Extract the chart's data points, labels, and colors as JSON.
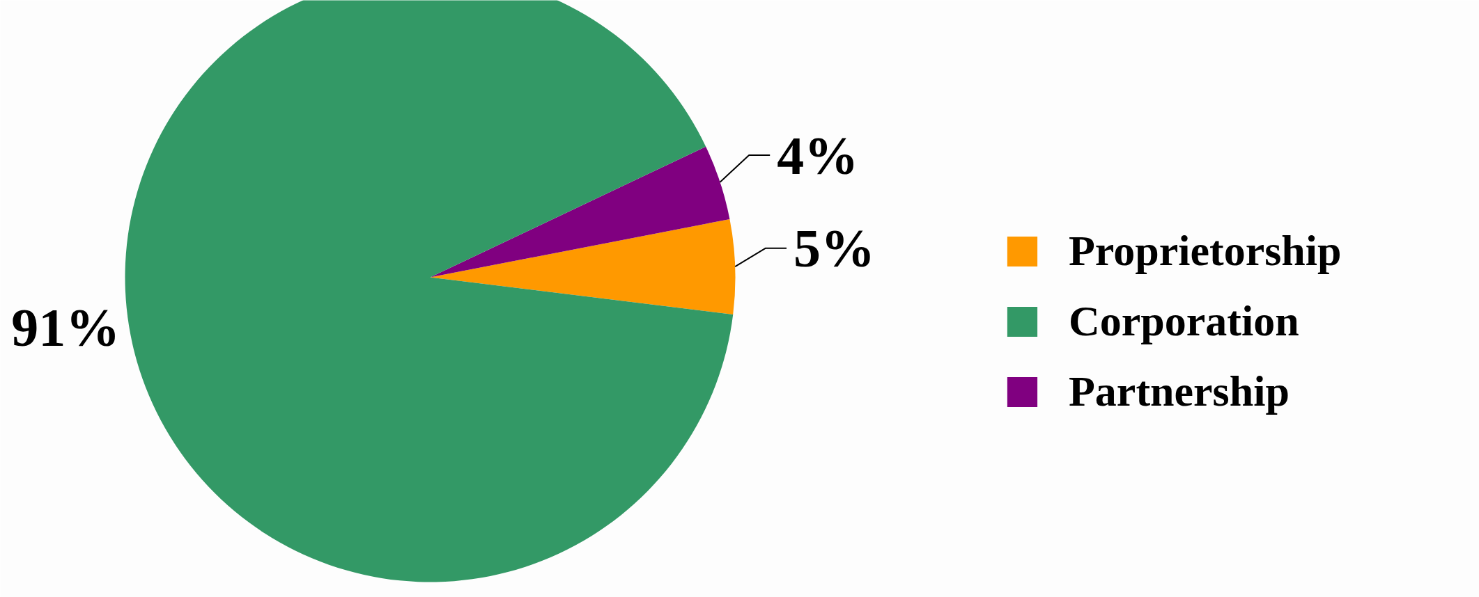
{
  "chart_data": {
    "type": "pie",
    "categories": [
      "Proprietorship",
      "Corporation",
      "Partnership"
    ],
    "values": [
      5,
      91,
      4
    ],
    "colors": [
      "#ff9900",
      "#339966",
      "#800080"
    ],
    "value_labels": [
      "5%",
      "91%",
      "4%"
    ],
    "legend": "right"
  }
}
